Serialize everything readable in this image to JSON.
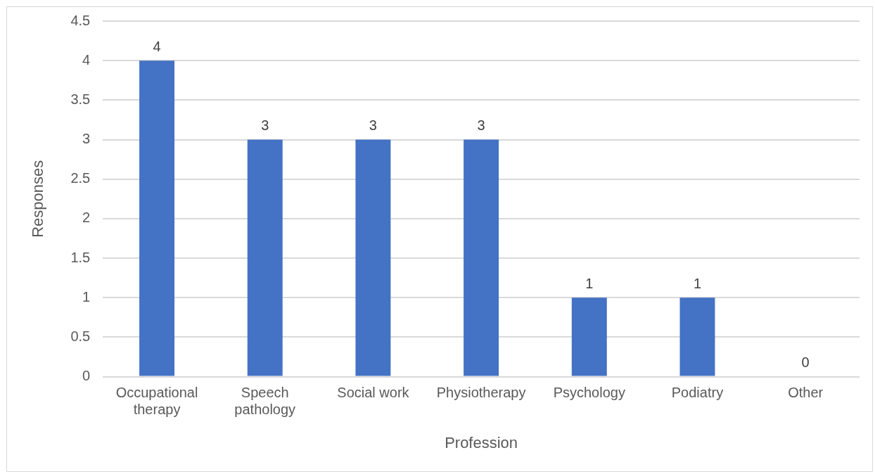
{
  "chart_data": {
    "type": "bar",
    "xlabel": "Profession",
    "ylabel": "Responses",
    "categories": [
      "Occupational therapy",
      "Speech pathology",
      "Social work",
      "Physiotherapy",
      "Psychology",
      "Podiatry",
      "Other"
    ],
    "values": [
      4,
      3,
      3,
      3,
      1,
      1,
      0
    ],
    "color": "#4472c4",
    "ylim": [
      0,
      4.5
    ],
    "yticks": [
      0,
      0.5,
      1,
      1.5,
      2,
      2.5,
      3,
      3.5,
      4,
      4.5
    ],
    "grid": "y",
    "data_labels": true
  }
}
